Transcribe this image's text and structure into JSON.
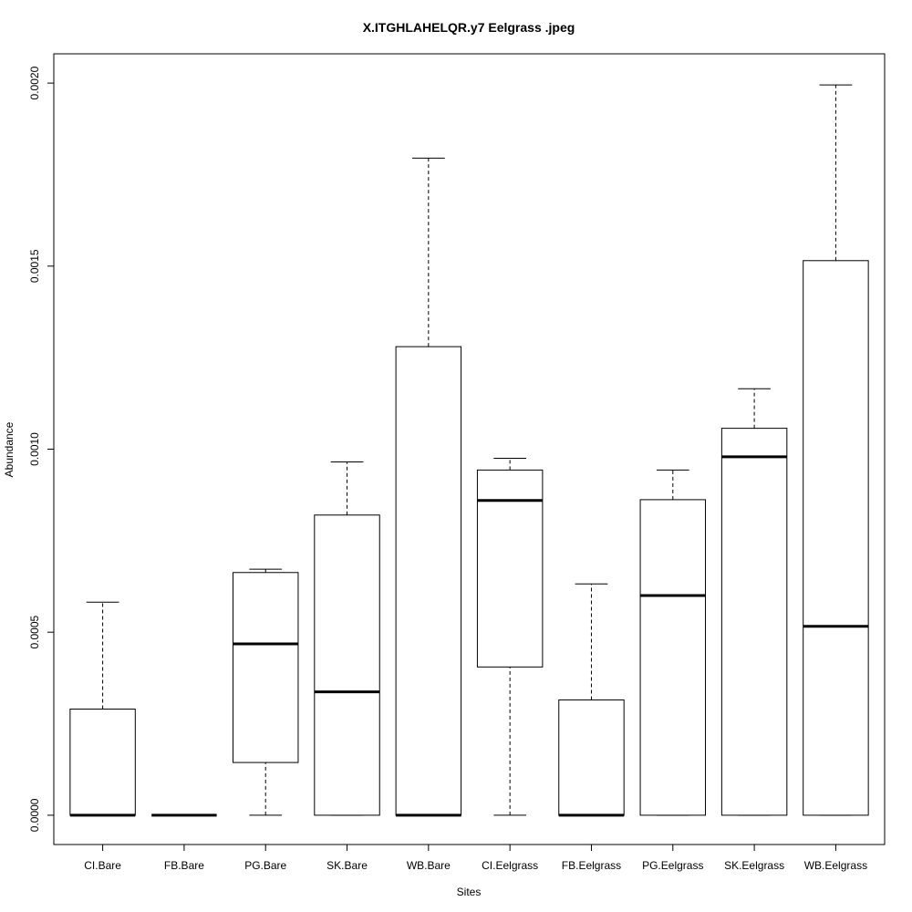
{
  "chart_data": {
    "type": "boxplot",
    "title": "X.ITGHLAHELQR.y7 Eelgrass .jpeg",
    "xlabel": "Sites",
    "ylabel": "Abundance",
    "ylim": [
      -8e-05,
      0.00208
    ],
    "yticks": [
      "0.0000",
      "0.0005",
      "0.0010",
      "0.0015",
      "0.0020"
    ],
    "ytick_values": [
      0.0,
      0.0005,
      0.001,
      0.0015,
      0.002
    ],
    "grid": false,
    "legend": "none",
    "categories": [
      "CI.Bare",
      "FB.Bare",
      "PG.Bare",
      "SK.Bare",
      "WB.Bare",
      "CI.Eelgrass",
      "FB.Eelgrass",
      "PG.Eelgrass",
      "SK.Eelgrass",
      "WB.Eelgrass"
    ],
    "boxes": [
      {
        "category": "CI.Bare",
        "min": 0.0,
        "q1": 0.0,
        "median": 0.0,
        "q3": 0.00029,
        "max": 0.000582
      },
      {
        "category": "FB.Bare",
        "min": 0.0,
        "q1": 0.0,
        "median": 0.0,
        "q3": 0.0,
        "max": 0.0
      },
      {
        "category": "PG.Bare",
        "min": 0.0,
        "q1": 0.000144,
        "median": 0.000468,
        "q3": 0.000663,
        "max": 0.000672
      },
      {
        "category": "SK.Bare",
        "min": 0.0,
        "q1": 0.0,
        "median": 0.000337,
        "q3": 0.00082,
        "max": 0.000965
      },
      {
        "category": "WB.Bare",
        "min": 0.0,
        "q1": 0.0,
        "median": 0.0,
        "q3": 0.00128,
        "max": 0.001795
      },
      {
        "category": "CI.Eelgrass",
        "min": 0.0,
        "q1": 0.000405,
        "median": 0.00086,
        "q3": 0.000943,
        "max": 0.000975
      },
      {
        "category": "FB.Eelgrass",
        "min": 0.0,
        "q1": 0.0,
        "median": 0.0,
        "q3": 0.000315,
        "max": 0.000632
      },
      {
        "category": "PG.Eelgrass",
        "min": 0.0,
        "q1": 0.0,
        "median": 0.0006,
        "q3": 0.000862,
        "max": 0.000943
      },
      {
        "category": "SK.Eelgrass",
        "min": 0.0,
        "q1": 0.0,
        "median": 0.000979,
        "q3": 0.001057,
        "max": 0.001165
      },
      {
        "category": "WB.Eelgrass",
        "min": 0.0,
        "q1": 0.0,
        "median": 0.000516,
        "q3": 0.001515,
        "max": 0.001995
      }
    ]
  }
}
